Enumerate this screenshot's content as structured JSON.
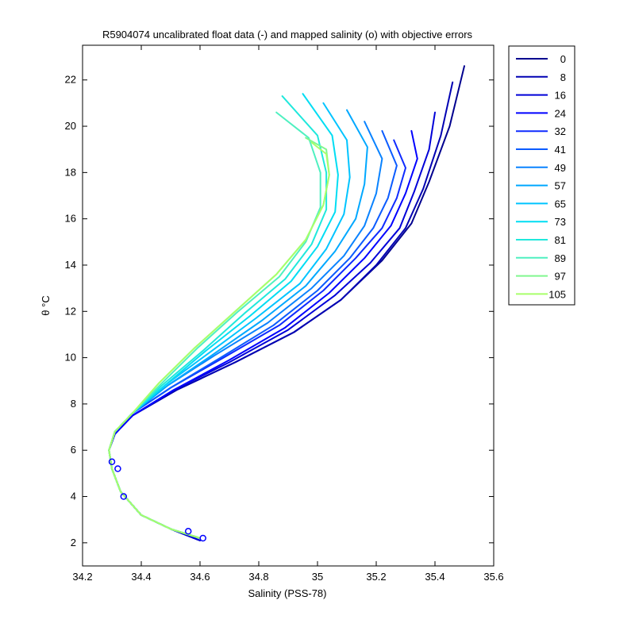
{
  "chart_data": {
    "type": "line",
    "title": "R5904074 uncalibrated float data (-) and mapped salinity (o) with objective errors",
    "xlabel": "Salinity (PSS-78)",
    "ylabel": "θ °C",
    "xlim": [
      34.2,
      35.6
    ],
    "ylim": [
      1,
      23.5
    ],
    "xticks": [
      34.2,
      34.4,
      34.6,
      34.8,
      35,
      35.2,
      35.4,
      35.6
    ],
    "xtick_labels": [
      "34.2",
      "34.4",
      "34.6",
      "34.8",
      "35",
      "35.2",
      "35.4",
      "35.6"
    ],
    "yticks": [
      2,
      4,
      6,
      8,
      10,
      12,
      14,
      16,
      18,
      20,
      22
    ],
    "ytick_labels": [
      "2",
      "4",
      "6",
      "8",
      "10",
      "12",
      "14",
      "16",
      "18",
      "20",
      "22"
    ],
    "grid": false,
    "legend_position": "outside-right",
    "legend": [
      {
        "label": "0",
        "color": "#00008f"
      },
      {
        "label": "8",
        "color": "#0000b3"
      },
      {
        "label": "16",
        "color": "#0000d8"
      },
      {
        "label": "24",
        "color": "#0000ff"
      },
      {
        "label": "32",
        "color": "#0f2bff"
      },
      {
        "label": "41",
        "color": "#0b5bff"
      },
      {
        "label": "49",
        "color": "#0a83ff"
      },
      {
        "label": "57",
        "color": "#00a8ff"
      },
      {
        "label": "65",
        "color": "#00c4ff"
      },
      {
        "label": "73",
        "color": "#00ddf3"
      },
      {
        "label": "81",
        "color": "#20e8dc"
      },
      {
        "label": "89",
        "color": "#4ff0c0"
      },
      {
        "label": "97",
        "color": "#80f78f"
      },
      {
        "label": "105",
        "color": "#a8ff6a"
      }
    ],
    "series": [
      {
        "color": "#00008f",
        "x": [
          34.6,
          34.5,
          34.4,
          34.33,
          34.3,
          34.29,
          34.31,
          34.37,
          34.52,
          34.72,
          34.92,
          35.08,
          35.22,
          35.32,
          35.38,
          35.45,
          35.5
        ],
        "y": [
          2.1,
          2.6,
          3.2,
          4.2,
          5.2,
          6.0,
          6.7,
          7.5,
          8.6,
          9.8,
          11.1,
          12.5,
          14.2,
          15.8,
          17.6,
          20.0,
          22.6
        ]
      },
      {
        "color": "#0000b3",
        "x": [
          34.6,
          34.5,
          34.4,
          34.33,
          34.3,
          34.29,
          34.31,
          34.37,
          34.52,
          34.72,
          34.92,
          35.08,
          35.2,
          35.3,
          35.36,
          35.42,
          35.46
        ],
        "y": [
          2.1,
          2.6,
          3.2,
          4.2,
          5.2,
          6.0,
          6.7,
          7.5,
          8.6,
          9.8,
          11.1,
          12.5,
          14.0,
          15.6,
          17.3,
          19.6,
          21.9
        ]
      },
      {
        "color": "#0000d8",
        "x": [
          34.6,
          34.5,
          34.4,
          34.33,
          34.3,
          34.29,
          34.31,
          34.37,
          34.51,
          34.7,
          34.9,
          35.06,
          35.18,
          35.28,
          35.33,
          35.38,
          35.4
        ],
        "y": [
          2.1,
          2.6,
          3.2,
          4.2,
          5.2,
          6.0,
          6.7,
          7.5,
          8.6,
          9.8,
          11.2,
          12.7,
          14.1,
          15.6,
          17.2,
          19.0,
          20.6
        ]
      },
      {
        "color": "#0000ff",
        "x": [
          34.6,
          34.5,
          34.4,
          34.33,
          34.3,
          34.29,
          34.31,
          34.37,
          34.51,
          34.7,
          34.89,
          35.04,
          35.16,
          35.25,
          35.3,
          35.34,
          35.32
        ],
        "y": [
          2.2,
          2.6,
          3.2,
          4.2,
          5.2,
          6.0,
          6.7,
          7.5,
          8.6,
          9.9,
          11.3,
          12.8,
          14.3,
          15.7,
          17.1,
          18.6,
          19.8
        ]
      },
      {
        "color": "#0f2bff",
        "x": [
          34.6,
          34.5,
          34.4,
          34.33,
          34.3,
          34.29,
          34.31,
          34.37,
          34.5,
          34.68,
          34.87,
          35.02,
          35.13,
          35.22,
          35.27,
          35.3,
          35.26
        ],
        "y": [
          2.2,
          2.6,
          3.2,
          4.2,
          5.2,
          6.0,
          6.8,
          7.6,
          8.7,
          10.0,
          11.4,
          12.9,
          14.3,
          15.6,
          16.9,
          18.2,
          19.4
        ]
      },
      {
        "color": "#0b5bff",
        "x": [
          34.6,
          34.5,
          34.4,
          34.33,
          34.3,
          34.29,
          34.31,
          34.37,
          34.5,
          34.67,
          34.85,
          35.0,
          35.11,
          35.19,
          35.24,
          35.27,
          35.22
        ],
        "y": [
          2.2,
          2.6,
          3.2,
          4.2,
          5.2,
          6.0,
          6.8,
          7.6,
          8.7,
          10.0,
          11.4,
          12.9,
          14.3,
          15.6,
          16.9,
          18.3,
          19.8
        ]
      },
      {
        "color": "#0a83ff",
        "x": [
          34.6,
          34.5,
          34.4,
          34.33,
          34.3,
          34.29,
          34.31,
          34.37,
          34.49,
          34.65,
          34.83,
          34.98,
          35.09,
          35.16,
          35.2,
          35.22,
          35.16
        ],
        "y": [
          2.2,
          2.6,
          3.2,
          4.2,
          5.2,
          6.0,
          6.8,
          7.6,
          8.8,
          10.1,
          11.5,
          13.0,
          14.4,
          15.7,
          17.1,
          18.6,
          20.2
        ]
      },
      {
        "color": "#00a8ff",
        "x": [
          34.6,
          34.5,
          34.4,
          34.33,
          34.3,
          34.29,
          34.31,
          34.37,
          34.49,
          34.64,
          34.81,
          34.96,
          35.06,
          35.13,
          35.16,
          35.17,
          35.1
        ],
        "y": [
          2.2,
          2.6,
          3.2,
          4.2,
          5.2,
          6.0,
          6.8,
          7.6,
          8.8,
          10.1,
          11.6,
          13.1,
          14.6,
          16.0,
          17.5,
          19.1,
          20.7
        ]
      },
      {
        "color": "#00c4ff",
        "x": [
          34.6,
          34.5,
          34.4,
          34.33,
          34.3,
          34.29,
          34.31,
          34.37,
          34.48,
          34.63,
          34.79,
          34.94,
          35.03,
          35.09,
          35.11,
          35.1,
          35.02
        ],
        "y": [
          2.2,
          2.6,
          3.2,
          4.2,
          5.2,
          6.0,
          6.8,
          7.6,
          8.8,
          10.2,
          11.7,
          13.2,
          14.7,
          16.2,
          17.8,
          19.4,
          21.0
        ]
      },
      {
        "color": "#00ddf3",
        "x": [
          34.6,
          34.5,
          34.4,
          34.33,
          34.3,
          34.29,
          34.31,
          34.37,
          34.48,
          34.62,
          34.77,
          34.91,
          35.0,
          35.06,
          35.07,
          35.05,
          34.95
        ],
        "y": [
          2.2,
          2.6,
          3.2,
          4.2,
          5.2,
          6.0,
          6.8,
          7.6,
          8.8,
          10.3,
          11.8,
          13.3,
          14.8,
          16.3,
          17.9,
          19.6,
          21.4
        ]
      },
      {
        "color": "#20e8dc",
        "x": [
          34.6,
          34.5,
          34.4,
          34.33,
          34.3,
          34.29,
          34.31,
          34.37,
          34.47,
          34.61,
          34.75,
          34.89,
          34.98,
          35.03,
          35.03,
          35.0,
          34.88
        ],
        "y": [
          2.2,
          2.6,
          3.2,
          4.2,
          5.2,
          6.0,
          6.8,
          7.6,
          8.8,
          10.3,
          11.9,
          13.4,
          14.9,
          16.4,
          18.0,
          19.6,
          21.3
        ]
      },
      {
        "color": "#4ff0c0",
        "x": [
          34.6,
          34.5,
          34.4,
          34.33,
          34.3,
          34.29,
          34.31,
          34.37,
          34.47,
          34.59,
          34.73,
          34.87,
          34.96,
          35.01,
          35.01,
          34.97,
          34.86
        ],
        "y": [
          2.2,
          2.6,
          3.2,
          4.2,
          5.2,
          6.0,
          6.8,
          7.6,
          8.9,
          10.4,
          12.0,
          13.5,
          15.0,
          16.5,
          18.0,
          19.5,
          20.6
        ]
      },
      {
        "color": "#80f78f",
        "x": [
          34.6,
          34.5,
          34.4,
          34.33,
          34.3,
          34.29,
          34.31,
          34.37,
          34.46,
          34.58,
          34.72,
          34.86,
          34.96,
          35.02,
          35.04,
          35.03,
          34.96
        ],
        "y": [
          2.2,
          2.6,
          3.2,
          4.2,
          5.2,
          6.0,
          6.8,
          7.6,
          8.9,
          10.4,
          12.0,
          13.6,
          15.1,
          16.6,
          17.9,
          19.0,
          19.5
        ]
      },
      {
        "color": "#a8ff6a",
        "x": [
          34.6,
          34.5,
          34.4,
          34.33,
          34.3,
          34.29,
          34.31,
          34.37,
          34.46,
          34.58,
          34.72,
          34.86,
          34.96,
          35.02,
          35.04,
          35.03,
          34.98
        ],
        "y": [
          2.2,
          2.6,
          3.2,
          4.2,
          5.2,
          6.0,
          6.8,
          7.6,
          8.9,
          10.4,
          12.0,
          13.6,
          15.1,
          16.6,
          17.9,
          18.8,
          19.3
        ]
      }
    ],
    "mapped_points": {
      "color": "#0000ff",
      "x": [
        34.32,
        34.34,
        34.56,
        34.61,
        34.3
      ],
      "y": [
        5.2,
        4.0,
        2.5,
        2.2,
        5.5
      ]
    }
  }
}
